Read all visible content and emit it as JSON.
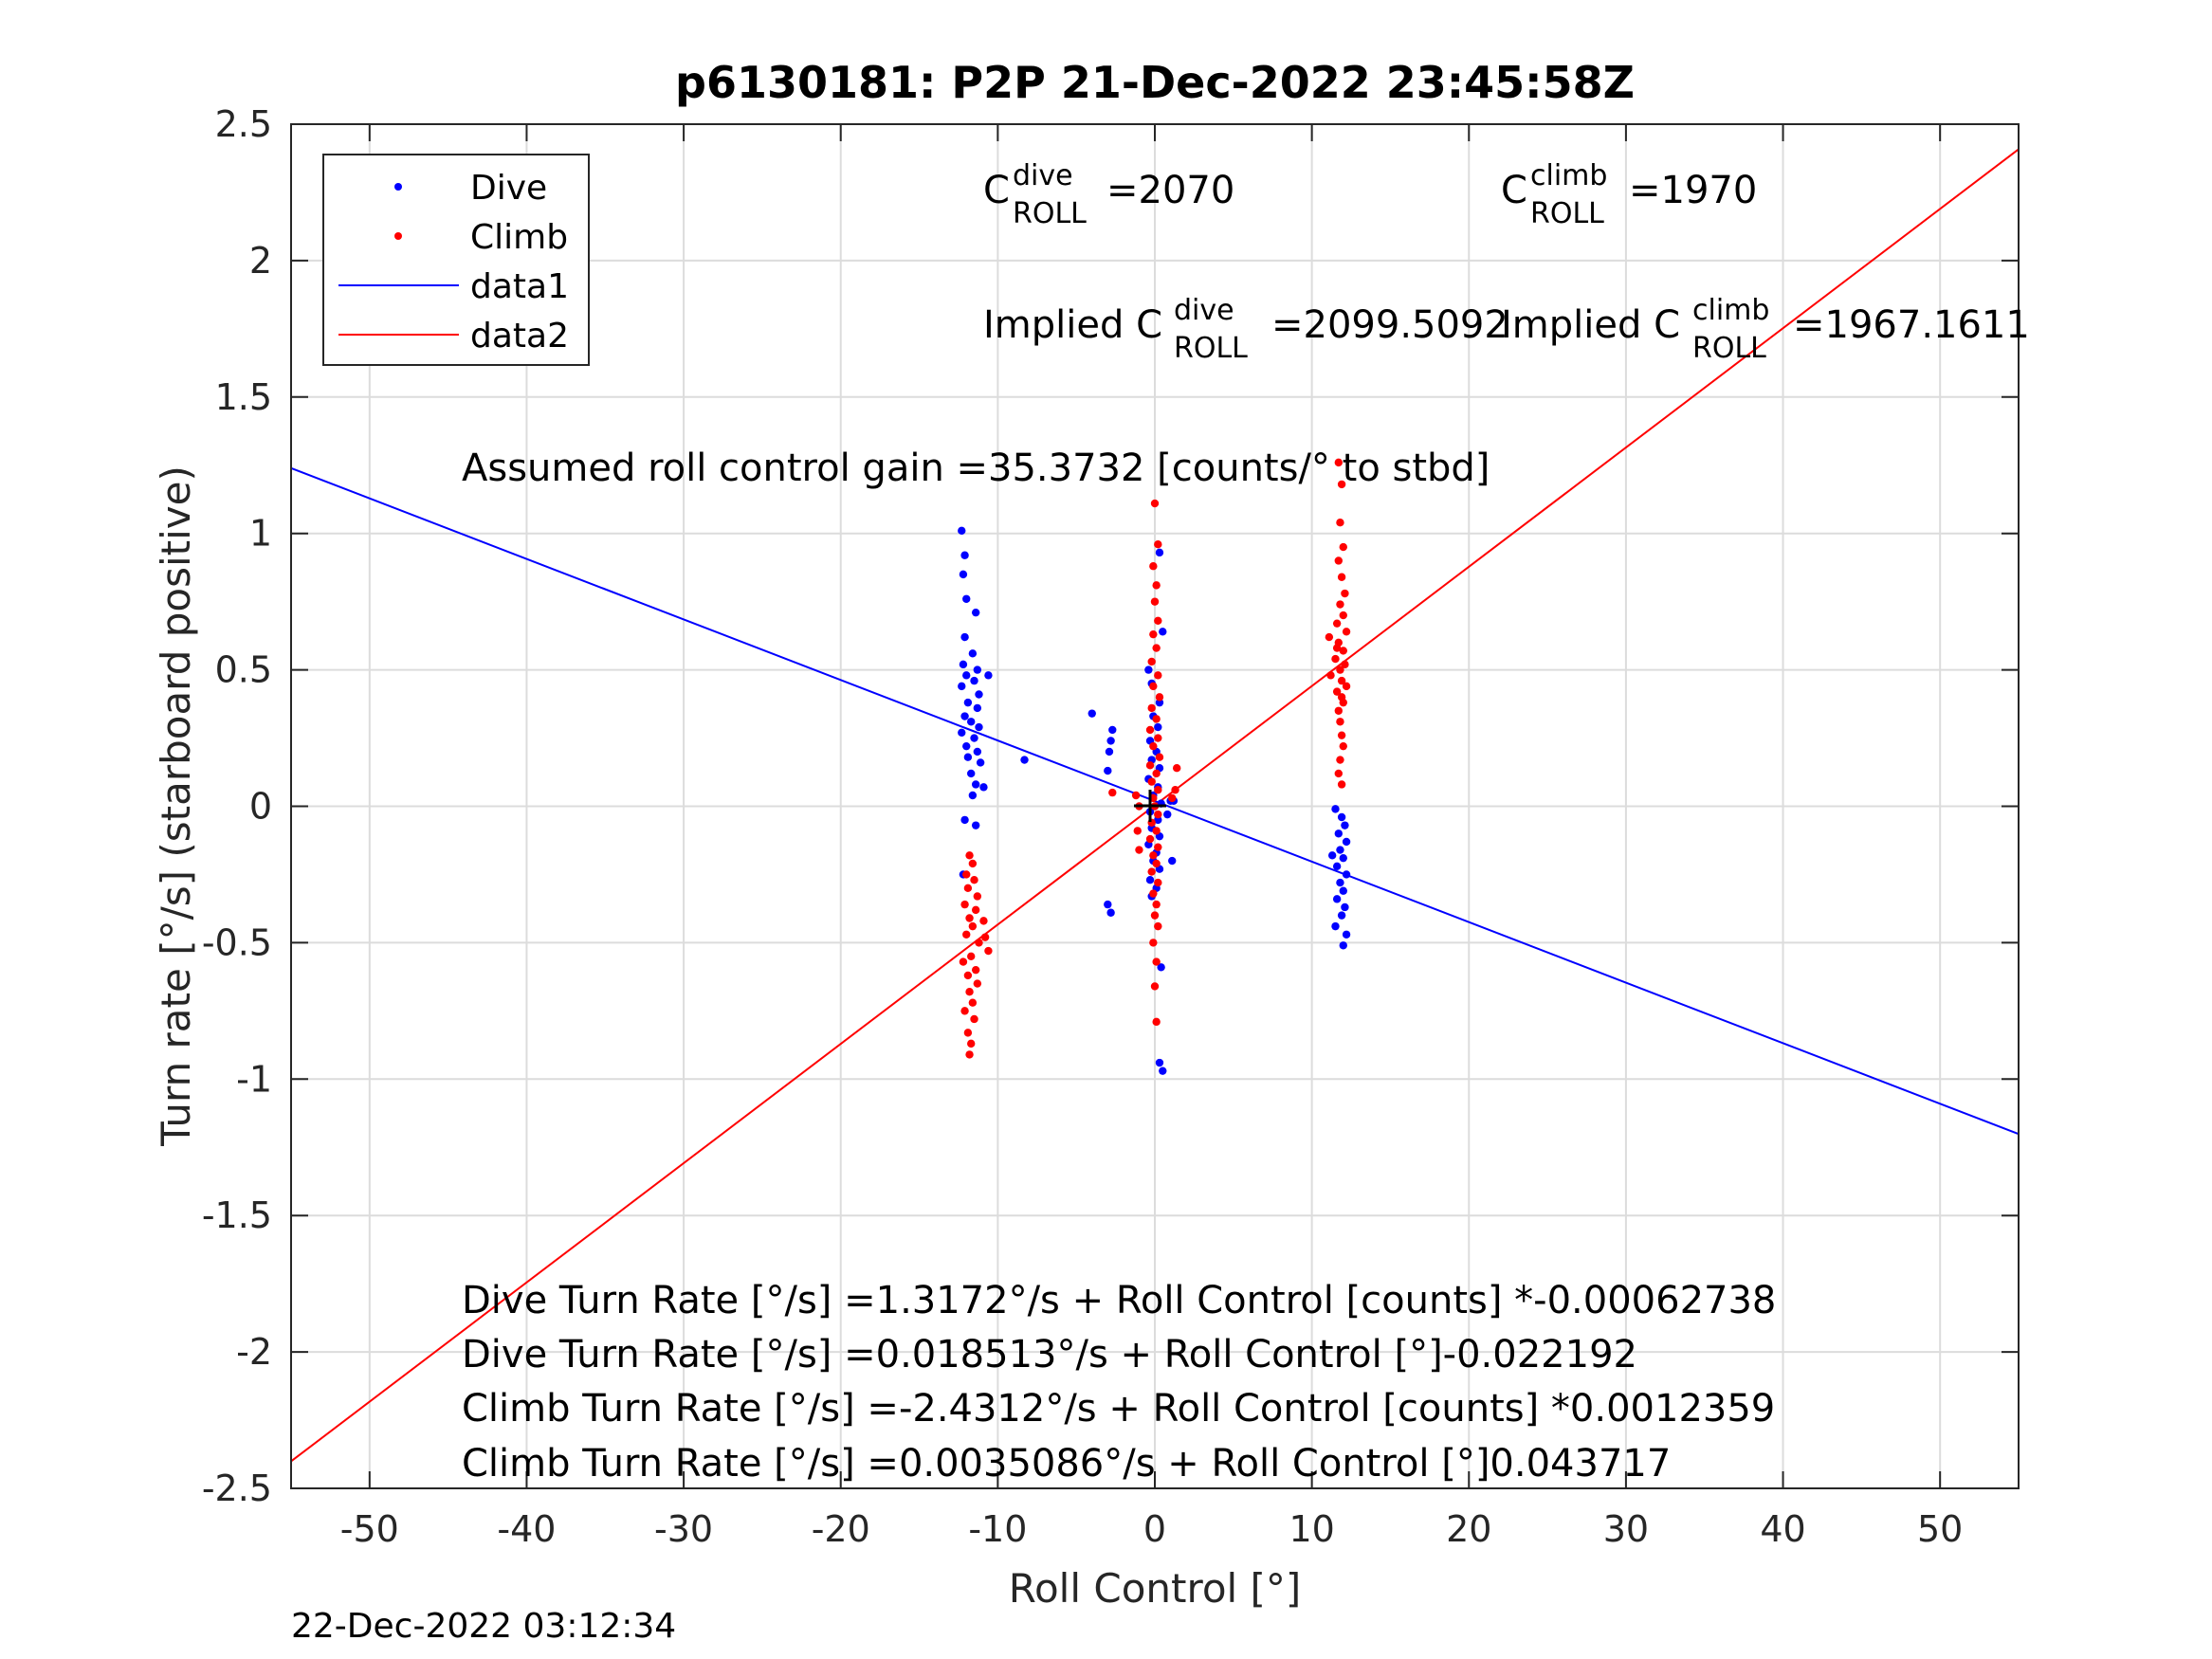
{
  "chart_data": {
    "type": "scatter",
    "title": "p6130181: P2P 21-Dec-2022 23:45:58Z",
    "xlabel": "Roll Control [°]",
    "ylabel": "Turn rate [°/s] (starboard positive)",
    "xlim": [
      -55,
      55
    ],
    "ylim": [
      -2.5,
      2.5
    ],
    "xticks": [
      -50,
      -40,
      -30,
      -20,
      -10,
      0,
      10,
      20,
      30,
      40,
      50
    ],
    "xtick_labels": [
      "-50",
      "-40",
      "-30",
      "-20",
      "-10",
      "0",
      "10",
      "20",
      "30",
      "40",
      "50"
    ],
    "yticks": [
      2.5,
      2,
      1.5,
      1,
      0.5,
      0,
      -0.5,
      -1,
      -1.5,
      -2,
      -2.5
    ],
    "ytick_labels": [
      "2.5",
      "2",
      "1.5",
      "1",
      "0.5",
      "0",
      "-0.5",
      "-1",
      "-1.5",
      "-2",
      "-2.5"
    ],
    "grid": true,
    "legend_position": "top-left",
    "colors": {
      "dive": "#0000ff",
      "climb": "#ff0000",
      "axes": "#262626",
      "grid": "#dcdcdc"
    },
    "legend": [
      "Dive",
      "Climb",
      "data1",
      "data2"
    ],
    "series": [
      {
        "name": "Dive",
        "kind": "points",
        "color": "#0000ff",
        "points": [
          [
            -12.3,
            1.01
          ],
          [
            -12.1,
            0.92
          ],
          [
            -12.2,
            0.85
          ],
          [
            -12.0,
            0.76
          ],
          [
            -11.4,
            0.71
          ],
          [
            -12.1,
            0.62
          ],
          [
            -11.6,
            0.56
          ],
          [
            -12.2,
            0.52
          ],
          [
            -11.3,
            0.5
          ],
          [
            -12.0,
            0.48
          ],
          [
            -11.5,
            0.46
          ],
          [
            -10.6,
            0.48
          ],
          [
            -12.3,
            0.44
          ],
          [
            -11.2,
            0.41
          ],
          [
            -11.9,
            0.38
          ],
          [
            -11.3,
            0.36
          ],
          [
            -12.1,
            0.33
          ],
          [
            -11.7,
            0.31
          ],
          [
            -11.2,
            0.29
          ],
          [
            -12.3,
            0.27
          ],
          [
            -11.5,
            0.25
          ],
          [
            -12.0,
            0.22
          ],
          [
            -11.3,
            0.2
          ],
          [
            -11.9,
            0.18
          ],
          [
            -11.1,
            0.16
          ],
          [
            -11.7,
            0.12
          ],
          [
            -11.4,
            0.08
          ],
          [
            -10.9,
            0.07
          ],
          [
            -11.6,
            0.04
          ],
          [
            -12.1,
            -0.05
          ],
          [
            -11.4,
            -0.07
          ],
          [
            -12.2,
            -0.25
          ],
          [
            -8.3,
            0.17
          ],
          [
            -4.0,
            0.34
          ],
          [
            -2.7,
            0.28
          ],
          [
            -2.8,
            0.24
          ],
          [
            -2.9,
            0.2
          ],
          [
            -3.0,
            0.13
          ],
          [
            -3.0,
            -0.36
          ],
          [
            -2.8,
            -0.39
          ],
          [
            -0.4,
            0.5
          ],
          [
            -0.2,
            0.45
          ],
          [
            0.3,
            0.38
          ],
          [
            -0.1,
            0.33
          ],
          [
            0.2,
            0.29
          ],
          [
            -0.3,
            0.24
          ],
          [
            0.1,
            0.2
          ],
          [
            -0.2,
            0.17
          ],
          [
            0.3,
            0.14
          ],
          [
            -0.4,
            0.1
          ],
          [
            0.2,
            0.07
          ],
          [
            -0.1,
            0.04
          ],
          [
            0.4,
            0.01
          ],
          [
            -0.3,
            -0.02
          ],
          [
            0.2,
            -0.05
          ],
          [
            -0.2,
            -0.08
          ],
          [
            0.3,
            -0.11
          ],
          [
            -0.4,
            -0.14
          ],
          [
            0.1,
            -0.17
          ],
          [
            -0.1,
            -0.2
          ],
          [
            0.3,
            -0.23
          ],
          [
            -0.3,
            -0.27
          ],
          [
            0.1,
            -0.3
          ],
          [
            -0.2,
            -0.33
          ],
          [
            1.0,
            0.02
          ],
          [
            1.2,
            0.02
          ],
          [
            0.8,
            -0.03
          ],
          [
            1.1,
            -0.2
          ],
          [
            0.3,
            0.93
          ],
          [
            0.5,
            0.64
          ],
          [
            0.4,
            -0.59
          ],
          [
            0.3,
            -0.94
          ],
          [
            0.5,
            -0.97
          ],
          [
            11.5,
            -0.01
          ],
          [
            11.9,
            -0.04
          ],
          [
            12.1,
            -0.07
          ],
          [
            11.7,
            -0.1
          ],
          [
            12.2,
            -0.13
          ],
          [
            11.8,
            -0.16
          ],
          [
            12.0,
            -0.19
          ],
          [
            11.6,
            -0.22
          ],
          [
            12.2,
            -0.25
          ],
          [
            11.8,
            -0.28
          ],
          [
            12.0,
            -0.31
          ],
          [
            11.6,
            -0.34
          ],
          [
            12.1,
            -0.37
          ],
          [
            11.9,
            -0.4
          ],
          [
            11.5,
            -0.44
          ],
          [
            12.2,
            -0.47
          ],
          [
            12.0,
            -0.51
          ],
          [
            11.3,
            -0.18
          ]
        ]
      },
      {
        "name": "Climb",
        "kind": "points",
        "color": "#ff0000",
        "points": [
          [
            -11.8,
            -0.18
          ],
          [
            -11.6,
            -0.21
          ],
          [
            -12.0,
            -0.25
          ],
          [
            -11.5,
            -0.27
          ],
          [
            -11.9,
            -0.3
          ],
          [
            -11.3,
            -0.33
          ],
          [
            -12.1,
            -0.36
          ],
          [
            -11.4,
            -0.38
          ],
          [
            -11.8,
            -0.41
          ],
          [
            -10.9,
            -0.42
          ],
          [
            -11.6,
            -0.44
          ],
          [
            -12.0,
            -0.47
          ],
          [
            -11.2,
            -0.5
          ],
          [
            -10.6,
            -0.53
          ],
          [
            -11.7,
            -0.55
          ],
          [
            -12.2,
            -0.57
          ],
          [
            -11.4,
            -0.6
          ],
          [
            -11.9,
            -0.62
          ],
          [
            -11.3,
            -0.65
          ],
          [
            -11.8,
            -0.68
          ],
          [
            -11.6,
            -0.72
          ],
          [
            -12.1,
            -0.75
          ],
          [
            -11.5,
            -0.78
          ],
          [
            -11.9,
            -0.83
          ],
          [
            -11.7,
            -0.87
          ],
          [
            -11.8,
            -0.91
          ],
          [
            -10.8,
            -0.48
          ],
          [
            0.0,
            1.11
          ],
          [
            0.2,
            0.96
          ],
          [
            -0.1,
            0.88
          ],
          [
            0.1,
            0.81
          ],
          [
            0.0,
            0.75
          ],
          [
            0.2,
            0.68
          ],
          [
            -0.1,
            0.63
          ],
          [
            0.1,
            0.58
          ],
          [
            -0.2,
            0.53
          ],
          [
            0.2,
            0.48
          ],
          [
            -0.1,
            0.44
          ],
          [
            0.3,
            0.4
          ],
          [
            -0.2,
            0.36
          ],
          [
            0.1,
            0.32
          ],
          [
            -0.3,
            0.28
          ],
          [
            0.2,
            0.25
          ],
          [
            -0.1,
            0.22
          ],
          [
            0.3,
            0.18
          ],
          [
            -0.3,
            0.15
          ],
          [
            0.1,
            0.12
          ],
          [
            -0.2,
            0.09
          ],
          [
            0.2,
            0.06
          ],
          [
            -0.1,
            0.03
          ],
          [
            0.0,
            0.0
          ],
          [
            0.2,
            -0.03
          ],
          [
            -0.2,
            -0.06
          ],
          [
            0.1,
            -0.09
          ],
          [
            -0.3,
            -0.12
          ],
          [
            0.2,
            -0.15
          ],
          [
            -0.1,
            -0.18
          ],
          [
            0.1,
            -0.21
          ],
          [
            -0.2,
            -0.24
          ],
          [
            0.2,
            -0.28
          ],
          [
            -0.1,
            -0.32
          ],
          [
            0.1,
            -0.36
          ],
          [
            0.0,
            -0.4
          ],
          [
            0.2,
            -0.44
          ],
          [
            -0.1,
            -0.5
          ],
          [
            0.1,
            -0.57
          ],
          [
            0.0,
            -0.66
          ],
          [
            0.1,
            -0.79
          ],
          [
            -1.2,
            0.04
          ],
          [
            -1.0,
            0.0
          ],
          [
            -1.1,
            -0.09
          ],
          [
            -2.7,
            0.05
          ],
          [
            1.3,
            0.06
          ],
          [
            1.4,
            0.14
          ],
          [
            1.1,
            0.03
          ],
          [
            -1.0,
            -0.16
          ],
          [
            11.7,
            1.26
          ],
          [
            11.9,
            1.18
          ],
          [
            11.8,
            1.04
          ],
          [
            12.0,
            0.95
          ],
          [
            11.7,
            0.9
          ],
          [
            11.9,
            0.84
          ],
          [
            12.1,
            0.78
          ],
          [
            11.8,
            0.74
          ],
          [
            12.0,
            0.7
          ],
          [
            11.6,
            0.67
          ],
          [
            12.2,
            0.64
          ],
          [
            11.7,
            0.6
          ],
          [
            11.1,
            0.62
          ],
          [
            12.0,
            0.57
          ],
          [
            11.5,
            0.54
          ],
          [
            12.1,
            0.52
          ],
          [
            11.8,
            0.5
          ],
          [
            11.2,
            0.48
          ],
          [
            11.9,
            0.46
          ],
          [
            12.2,
            0.44
          ],
          [
            11.6,
            0.42
          ],
          [
            11.9,
            0.4
          ],
          [
            12.0,
            0.38
          ],
          [
            11.7,
            0.35
          ],
          [
            11.8,
            0.31
          ],
          [
            11.9,
            0.26
          ],
          [
            12.0,
            0.22
          ],
          [
            11.8,
            0.17
          ],
          [
            11.7,
            0.12
          ],
          [
            11.9,
            0.08
          ],
          [
            11.6,
            0.58
          ]
        ]
      },
      {
        "name": "data1",
        "kind": "line",
        "color": "#0000ff",
        "x": [
          -55,
          55
        ],
        "y": [
          1.2394,
          -1.2012
        ]
      },
      {
        "name": "data2",
        "kind": "line",
        "color": "#ff0000",
        "x": [
          -55,
          55
        ],
        "y": [
          -2.4009,
          2.408
        ]
      }
    ],
    "annotations": {
      "dive_c_roll": {
        "base": "C",
        "sup": "dive",
        "sub": "ROLL",
        "value": "=2070"
      },
      "climb_c_roll": {
        "base": "C",
        "sup": "climb",
        "sub": "ROLL",
        "value": "=1970"
      },
      "implied_dive": {
        "base": "Implied C",
        "sup": "dive",
        "sub": "ROLL",
        "value": "=2099.5092"
      },
      "implied_climb": {
        "base": "Implied C",
        "sup": "climb",
        "sub": "ROLL",
        "value": "=1967.1611"
      },
      "gain": "Assumed roll control gain =35.3732 [counts/° to stbd]",
      "equations": [
        "Dive Turn Rate [°/s] =1.3172°/s + Roll Control [counts] *-0.00062738",
        "Dive Turn Rate [°/s] =0.018513°/s + Roll Control [°]-0.022192",
        "Climb Turn Rate [°/s] =-2.4312°/s + Roll Control [counts] *0.0012359",
        "Climb Turn Rate [°/s] =0.0035086°/s + Roll Control [°]0.043717"
      ]
    },
    "timestamp": "22-Dec-2022 03:12:34"
  }
}
